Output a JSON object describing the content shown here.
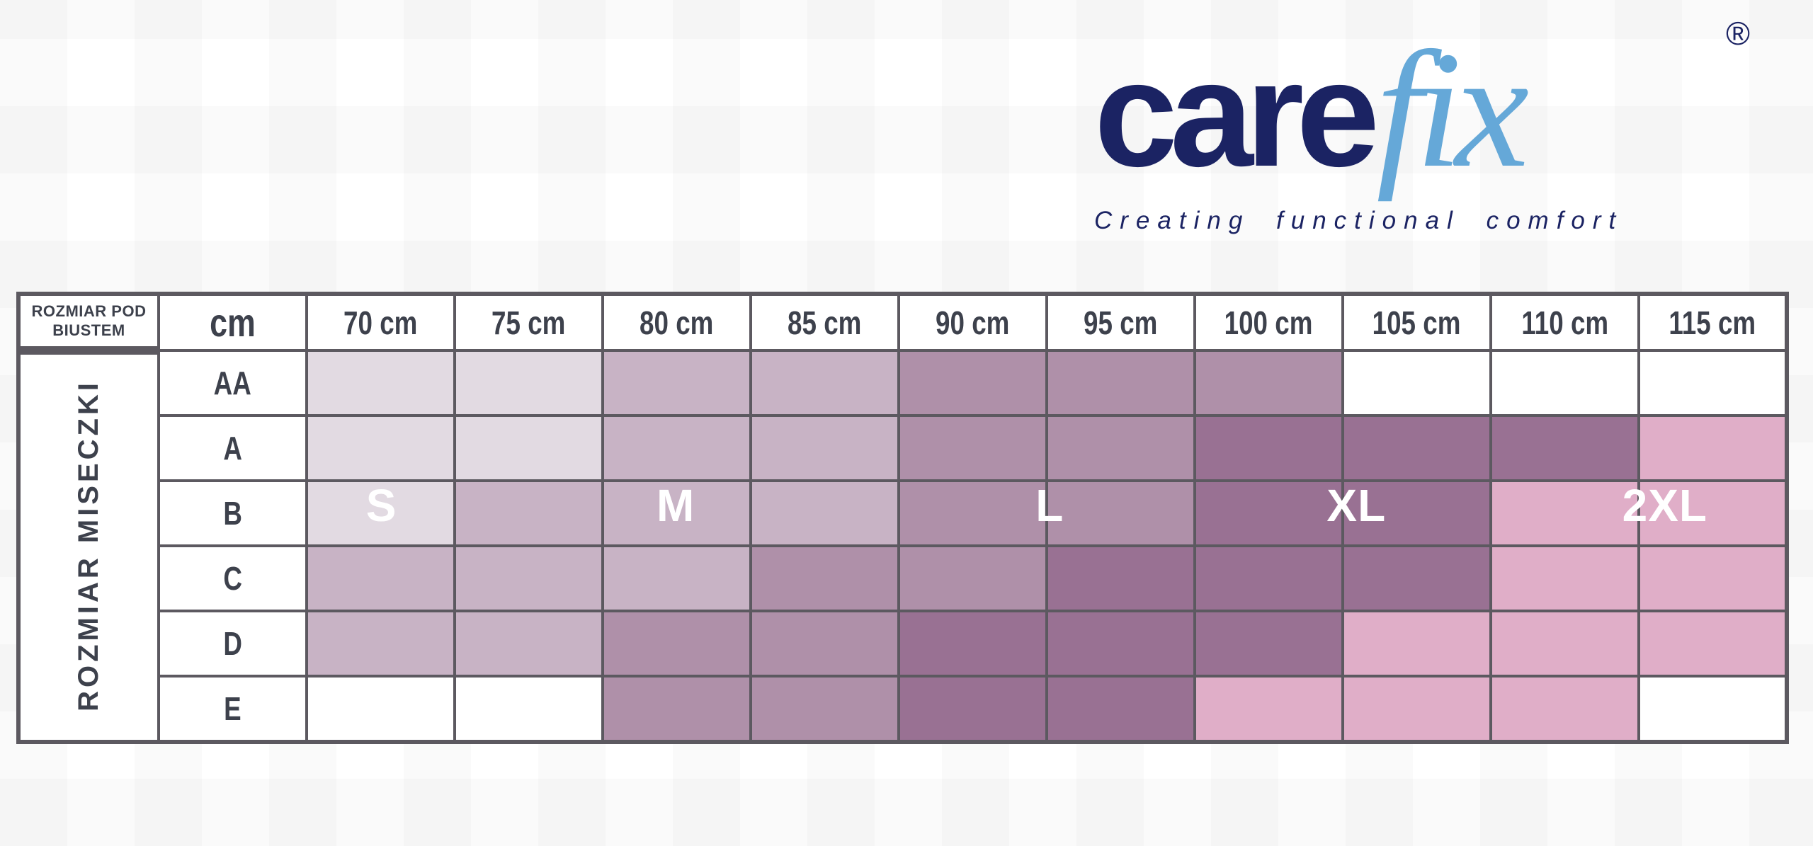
{
  "logo": {
    "brand_part1": "care",
    "brand_part2": "fix",
    "registered_mark": "®",
    "tagline": "Creating functional comfort",
    "brand_color_primary": "#1b2363",
    "brand_color_secondary": "#65a8d8"
  },
  "chart_data": {
    "type": "heatmap",
    "title": "Carefix bra size chart",
    "corner_header": "ROZMIAR POD BIUSTEM",
    "unit_header": "cm",
    "row_axis_label": "ROZMIAR MISECZKI",
    "columns": [
      "70 cm",
      "75 cm",
      "80 cm",
      "85 cm",
      "90 cm",
      "95 cm",
      "100 cm",
      "105 cm",
      "110 cm",
      "115 cm"
    ],
    "rows": [
      "AA",
      "A",
      "B",
      "C",
      "D",
      "E"
    ],
    "shade_colors": {
      "light": "#e2dae2",
      "medium": "#c8b3c5",
      "dark": "#af90a9",
      "darkest": "#997193",
      "pink": "#e0aec8",
      "none": "#ffffff"
    },
    "grid_line_color": "#5c5960",
    "cells": [
      [
        "light",
        "light",
        "medium",
        "medium",
        "dark",
        "dark",
        "dark",
        "none",
        "none",
        "none"
      ],
      [
        "light",
        "light",
        "medium",
        "medium",
        "dark",
        "dark",
        "darkest",
        "darkest",
        "darkest",
        "pink"
      ],
      [
        "light",
        "medium",
        "medium",
        "medium",
        "dark",
        "dark",
        "darkest",
        "darkest",
        "pink",
        "pink"
      ],
      [
        "medium",
        "medium",
        "medium",
        "dark",
        "dark",
        "darkest",
        "darkest",
        "darkest",
        "pink",
        "pink"
      ],
      [
        "medium",
        "medium",
        "dark",
        "dark",
        "darkest",
        "darkest",
        "darkest",
        "pink",
        "pink",
        "pink"
      ],
      [
        "none",
        "none",
        "dark",
        "dark",
        "darkest",
        "darkest",
        "pink",
        "pink",
        "pink",
        "none"
      ]
    ],
    "size_labels": [
      {
        "label": "S",
        "band_columns": "70-75"
      },
      {
        "label": "M",
        "band_columns": "80-85"
      },
      {
        "label": "L",
        "band_columns": "90-95"
      },
      {
        "label": "XL",
        "band_columns": "100-105"
      },
      {
        "label": "2XL",
        "band_columns": "110-115"
      }
    ]
  }
}
